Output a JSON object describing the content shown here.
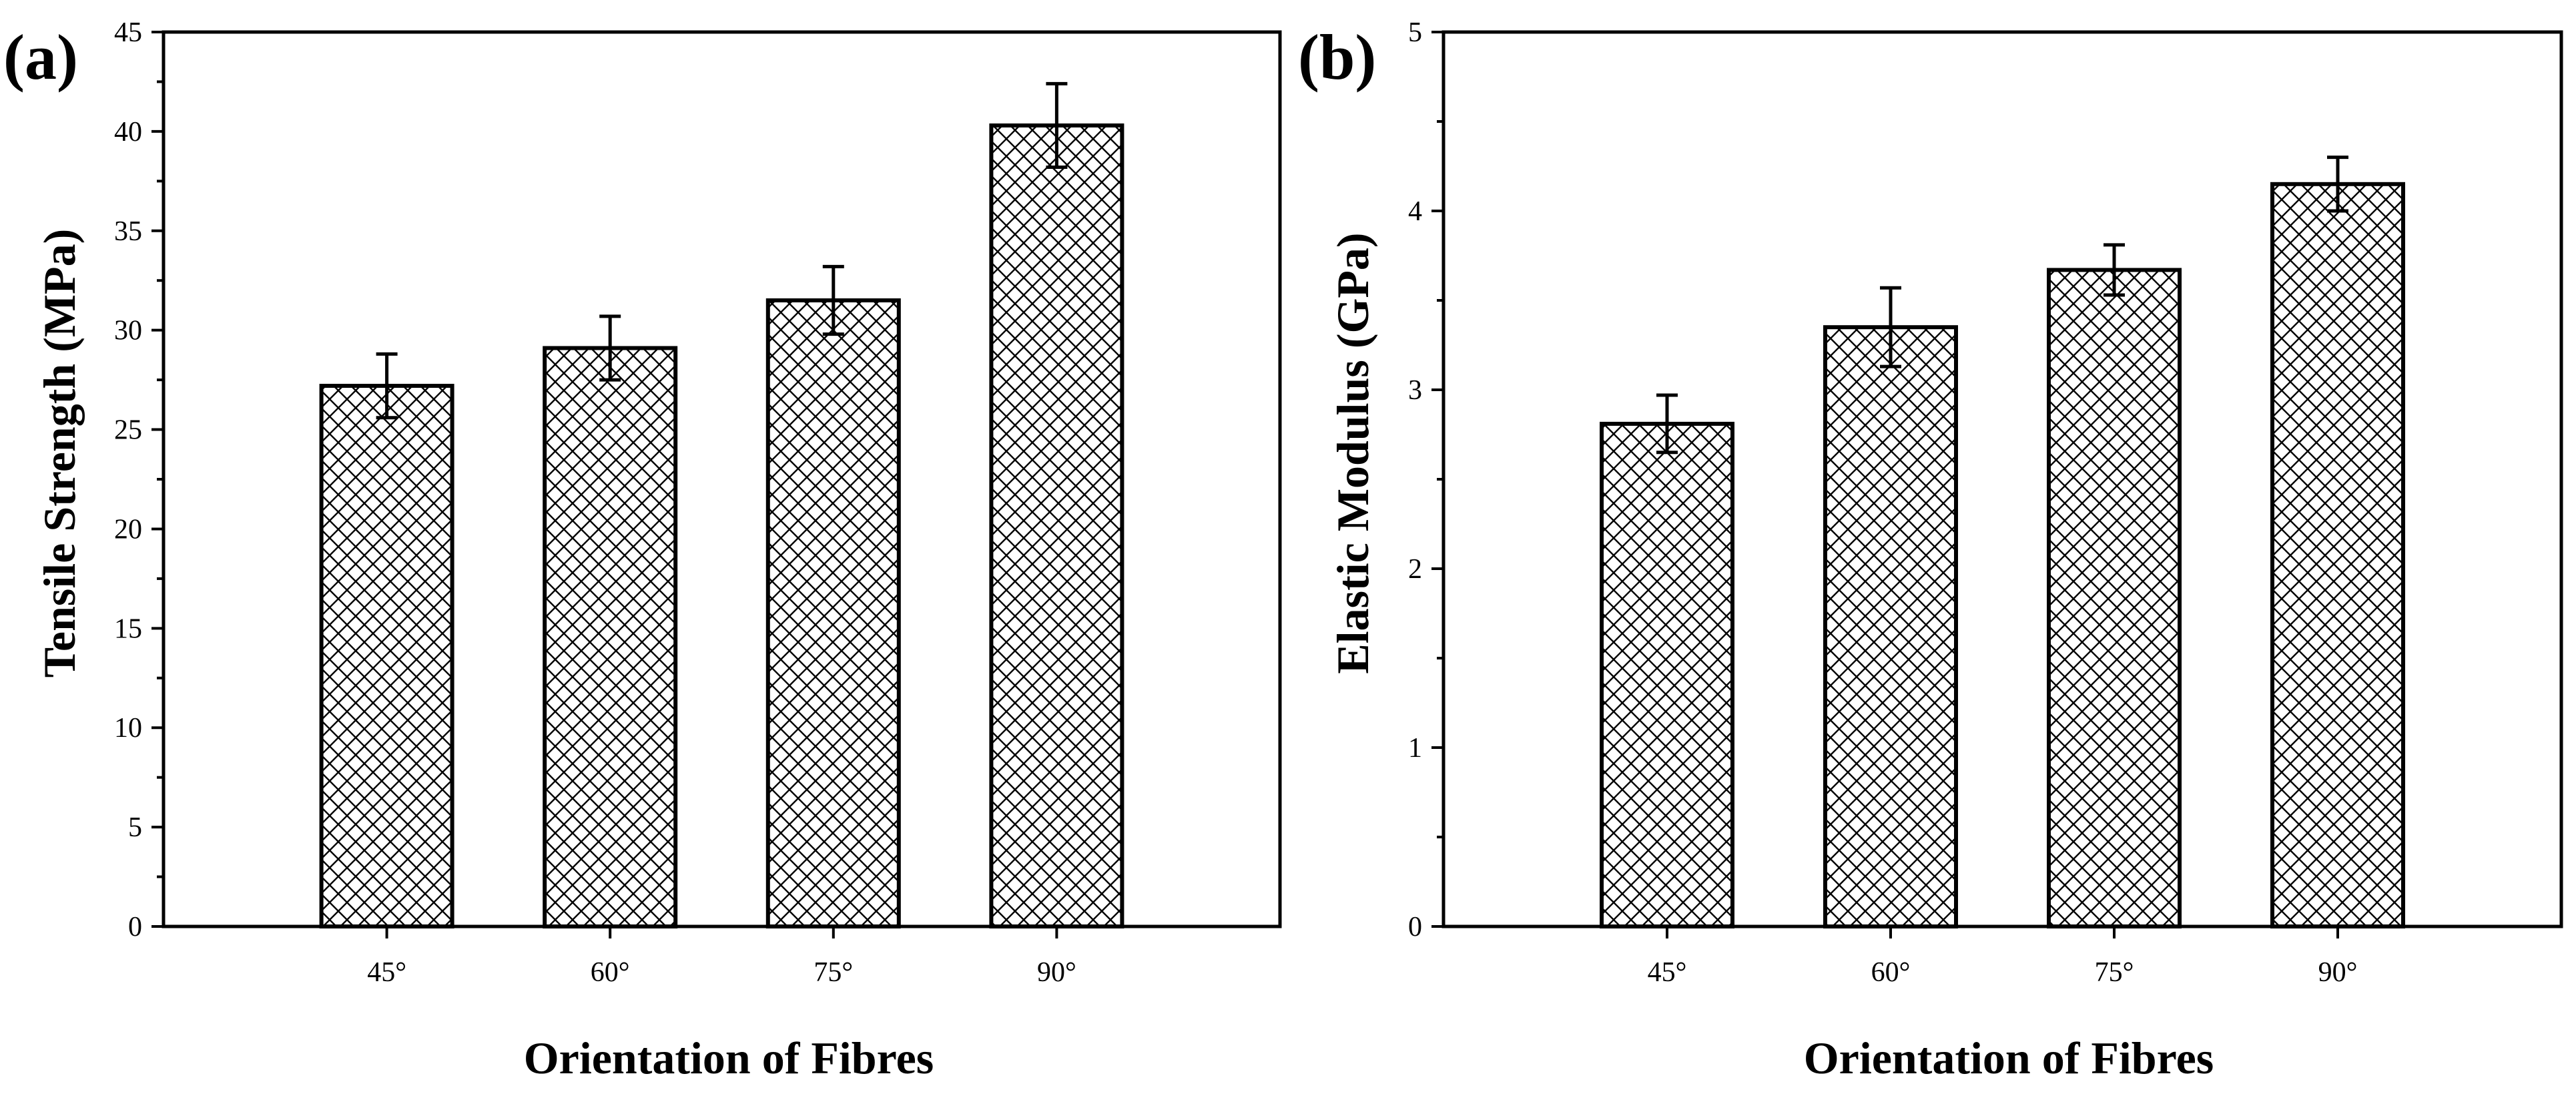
{
  "colors": {
    "axis": "#000000",
    "bar_fill": "#ffffff",
    "hatch": "#000000"
  },
  "chart_data": [
    {
      "type": "bar",
      "panel_label": "(a)",
      "title": "",
      "xlabel": "Orientation of Fibres",
      "ylabel": "Tensile Strength (MPa)",
      "categories": [
        "45°",
        "60°",
        "75°",
        "90°"
      ],
      "values": [
        27.2,
        29.1,
        31.5,
        40.3
      ],
      "errors": [
        1.6,
        1.6,
        1.7,
        2.1
      ],
      "ylim": [
        0,
        45
      ],
      "yticks": [
        0,
        5,
        10,
        15,
        20,
        25,
        30,
        35,
        40,
        45
      ],
      "ytick_labels": [
        "0",
        "5",
        "10",
        "15",
        "20",
        "25",
        "30",
        "35",
        "40",
        "45"
      ],
      "pattern": "crosshatch",
      "grid": false
    },
    {
      "type": "bar",
      "panel_label": "(b)",
      "title": "",
      "xlabel": "Orientation of Fibres",
      "ylabel": "Elastic Modulus (GPa)",
      "categories": [
        "45°",
        "60°",
        "75°",
        "90°"
      ],
      "values": [
        2.81,
        3.35,
        3.67,
        4.15
      ],
      "errors": [
        0.16,
        0.22,
        0.14,
        0.15
      ],
      "ylim": [
        0,
        5
      ],
      "yticks": [
        0,
        1,
        2,
        3,
        4,
        5
      ],
      "ytick_labels": [
        "0",
        "1",
        "2",
        "3",
        "4",
        "5"
      ],
      "pattern": "crosshatch",
      "grid": false
    }
  ]
}
